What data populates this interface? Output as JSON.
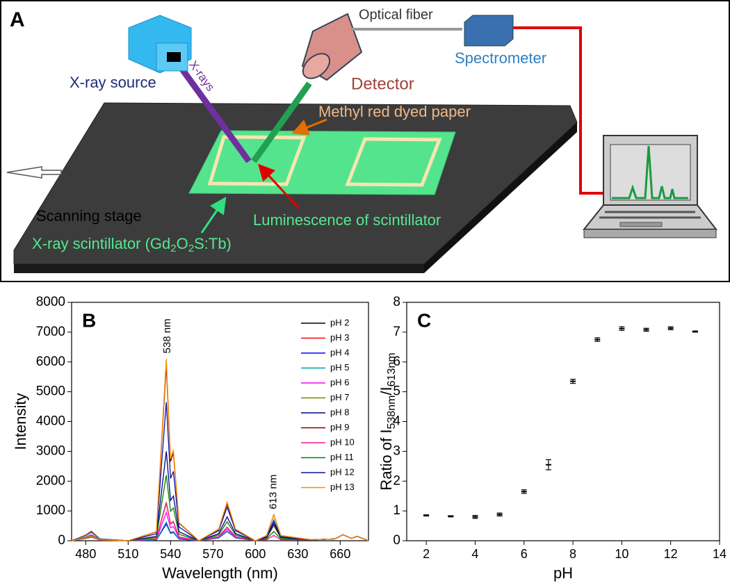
{
  "diagram": {
    "panel_label": "A",
    "optical_fiber": "Optical fiber",
    "spectrometer": "Spectrometer",
    "xray_source": "X-ray source",
    "xrays": "X-rays",
    "detector": "Detector",
    "paper": "Methyl red dyed paper",
    "stage": "Scanning stage",
    "luminescence": "Luminescence of scintillator",
    "scintillator": [
      "X-ray scintillator (Gd",
      "2",
      "O",
      "2",
      "S:Tb)"
    ]
  },
  "chart_data": [
    {
      "type": "line",
      "panel_label": "B",
      "x_label": "Wavelength (nm)",
      "y_label": "Intensity",
      "annotations": [
        {
          "text": "538 nm",
          "x": 538,
          "y": 6100
        },
        {
          "text": "613 nm",
          "x": 613,
          "y": 870
        }
      ],
      "x": [
        470,
        480,
        484,
        490,
        510,
        530,
        534,
        537,
        540,
        542,
        546,
        560,
        574,
        580,
        586,
        600,
        608,
        613,
        618,
        640,
        656,
        662,
        668,
        672,
        680
      ],
      "xlim": [
        470,
        680
      ],
      "xticks": [
        480,
        510,
        540,
        570,
        600,
        630,
        660
      ],
      "ylim": [
        0,
        8000
      ],
      "yticks": [
        0,
        1000,
        2000,
        3000,
        4000,
        5000,
        6000,
        7000,
        8000
      ],
      "legend": "upper right",
      "series": [
        {
          "name": "pH 2",
          "color": "#000000",
          "values": [
            0,
            180,
            300,
            60,
            0,
            30,
            360,
            600,
            270,
            300,
            60,
            0,
            96,
            320,
            96,
            0,
            140,
            700,
            140,
            30,
            60,
            200,
            80,
            150,
            0
          ]
        },
        {
          "name": "pH 3",
          "color": "#ff0000",
          "values": [
            0,
            192,
            320,
            64,
            0,
            29,
            348,
            580,
            261,
            290,
            58,
            0,
            95,
            316,
            95,
            0,
            140,
            700,
            140,
            30,
            60,
            200,
            80,
            150,
            0
          ]
        },
        {
          "name": "pH 4",
          "color": "#0000ff",
          "values": [
            0,
            168,
            280,
            56,
            0,
            28,
            336,
            560,
            252,
            280,
            56,
            0,
            94,
            312,
            94,
            0,
            138,
            690,
            138,
            30,
            60,
            200,
            80,
            150,
            0
          ]
        },
        {
          "name": "pH 5",
          "color": "#00a0a0",
          "values": [
            0,
            168,
            280,
            56,
            0,
            31,
            372,
            620,
            279,
            310,
            62,
            0,
            97,
            324,
            97,
            0,
            140,
            700,
            140,
            30,
            60,
            200,
            80,
            150,
            0
          ]
        },
        {
          "name": "pH 6",
          "color": "#ff00ff",
          "values": [
            0,
            120,
            200,
            40,
            0,
            48,
            570,
            950,
            428,
            475,
            95,
            0,
            117,
            390,
            117,
            0,
            114,
            570,
            114,
            30,
            60,
            200,
            80,
            150,
            0
          ]
        },
        {
          "name": "pH 7",
          "color": "#808000",
          "values": [
            0,
            108,
            180,
            36,
            0,
            65,
            780,
            1300,
            585,
            650,
            130,
            0,
            138,
            460,
            138,
            0,
            100,
            500,
            100,
            30,
            60,
            200,
            80,
            150,
            0
          ]
        },
        {
          "name": "pH 8",
          "color": "#000080",
          "values": [
            0,
            90,
            150,
            30,
            0,
            150,
            1800,
            3000,
            1350,
            1500,
            300,
            0,
            240,
            800,
            240,
            0,
            112,
            560,
            112,
            30,
            60,
            200,
            80,
            150,
            0
          ]
        },
        {
          "name": "pH 9",
          "color": "#800000",
          "values": [
            0,
            90,
            150,
            30,
            0,
            295,
            3540,
            5900,
            2655,
            2950,
            590,
            0,
            375,
            1250,
            375,
            0,
            174,
            870,
            174,
            30,
            60,
            200,
            80,
            150,
            0
          ]
        },
        {
          "name": "pH 10",
          "color": "#ff1493",
          "values": [
            0,
            72,
            120,
            24,
            0,
            63,
            750,
            1250,
            563,
            625,
            125,
            0,
            135,
            450,
            135,
            0,
            36,
            180,
            36,
            30,
            60,
            200,
            80,
            150,
            0
          ]
        },
        {
          "name": "pH 11",
          "color": "#008000",
          "values": [
            0,
            78,
            130,
            26,
            0,
            110,
            1320,
            2200,
            990,
            1100,
            220,
            0,
            192,
            640,
            192,
            0,
            62,
            310,
            62,
            30,
            60,
            200,
            80,
            150,
            0
          ]
        },
        {
          "name": "pH 12",
          "color": "#1010a0",
          "values": [
            0,
            90,
            150,
            30,
            0,
            233,
            2790,
            4650,
            2093,
            2325,
            465,
            0,
            339,
            1130,
            339,
            0,
            130,
            650,
            130,
            30,
            60,
            200,
            80,
            150,
            0
          ]
        },
        {
          "name": "pH 13",
          "color": "#ff8c00",
          "values": [
            0,
            90,
            150,
            30,
            0,
            305,
            3660,
            6100,
            2745,
            3050,
            610,
            0,
            390,
            1300,
            390,
            0,
            174,
            870,
            174,
            30,
            60,
            200,
            80,
            150,
            0
          ]
        }
      ]
    },
    {
      "type": "errorbar",
      "panel_label": "C",
      "x_label": "pH",
      "y_label": [
        "Ratio of I",
        "538nm",
        "/I",
        "613nm"
      ],
      "x": [
        2,
        3,
        4,
        5,
        6,
        7,
        8,
        9,
        10,
        11,
        12,
        13
      ],
      "values": [
        0.85,
        0.82,
        0.8,
        0.88,
        1.65,
        2.55,
        5.35,
        6.75,
        7.12,
        7.08,
        7.13,
        7.02
      ],
      "errors": [
        0.02,
        0.02,
        0.05,
        0.05,
        0.06,
        0.17,
        0.07,
        0.06,
        0.06,
        0.05,
        0.05,
        0.02
      ],
      "color": "#000000",
      "xlim": [
        1.2,
        14
      ],
      "xticks": [
        2,
        4,
        6,
        8,
        10,
        12,
        14
      ],
      "ylim": [
        0,
        8
      ],
      "yticks": [
        0,
        1,
        2,
        3,
        4,
        5,
        6,
        7,
        8
      ]
    }
  ]
}
